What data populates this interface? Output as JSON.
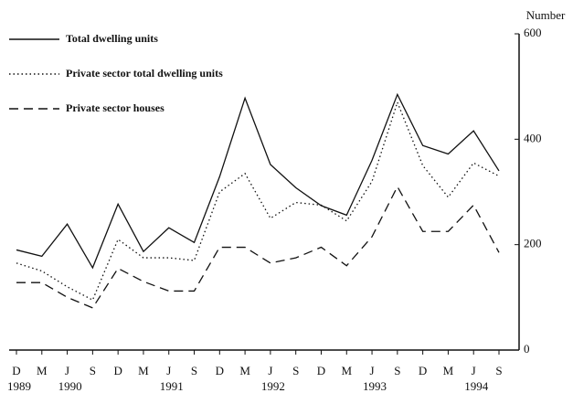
{
  "chart_data": {
    "type": "line",
    "y_label": "Number",
    "categories": [
      "D",
      "M",
      "J",
      "S",
      "D",
      "M",
      "J",
      "S",
      "D",
      "M",
      "J",
      "S",
      "D",
      "M",
      "J",
      "S",
      "D",
      "M",
      "J",
      "S"
    ],
    "year_labels": [
      "1989",
      null,
      "1990",
      null,
      null,
      null,
      "1991",
      null,
      null,
      null,
      "1992",
      null,
      null,
      null,
      "1993",
      null,
      null,
      null,
      "1994",
      null
    ],
    "series": [
      {
        "name": "Total dwelling units",
        "color": "#111111",
        "dash": "solid",
        "values": [
          190,
          178,
          239,
          156,
          277,
          187,
          232,
          204,
          329,
          478,
          352,
          308,
          274,
          256,
          360,
          485,
          388,
          372,
          416,
          340
        ]
      },
      {
        "name": "Private sector total dwelling units",
        "color": "#111111",
        "dash": "dotted",
        "values": [
          165,
          150,
          120,
          95,
          210,
          175,
          175,
          170,
          300,
          335,
          250,
          280,
          275,
          245,
          320,
          470,
          350,
          290,
          355,
          330
        ]
      },
      {
        "name": "Private sector houses",
        "color": "#111111",
        "dash": "dashed",
        "values": [
          128,
          128,
          100,
          80,
          155,
          130,
          112,
          112,
          195,
          195,
          165,
          175,
          195,
          160,
          215,
          310,
          225,
          225,
          275,
          185
        ]
      }
    ],
    "ylim": [
      0,
      600
    ],
    "yticks": [
      0,
      200,
      400,
      600
    ],
    "y_axis_side": "right",
    "legend": "top-left"
  }
}
